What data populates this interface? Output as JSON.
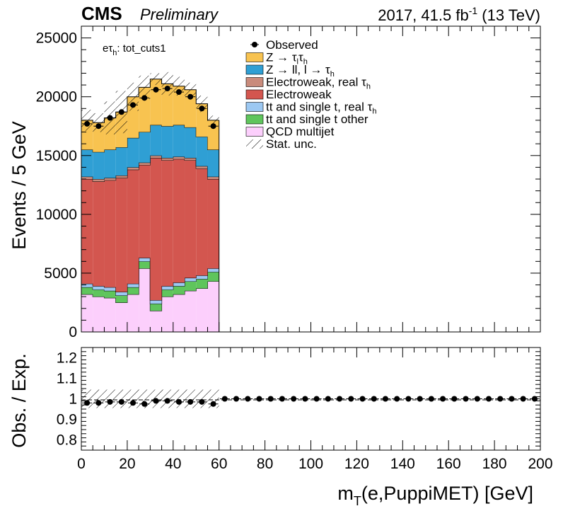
{
  "header": {
    "cms": "CMS",
    "preliminary": "Preliminary",
    "lumi_main": "2017, 41.5 fb",
    "lumi_sup": "-1",
    "lumi_energy": " (13 TeV)"
  },
  "channel_label": {
    "main": "eτ",
    "sub": "h",
    "rest": ": tot_cuts1"
  },
  "legend": [
    {
      "key": "observed",
      "label": "Observed",
      "style": "marker"
    },
    {
      "key": "ztt",
      "label": "Z → τ",
      "sub": "l",
      "label2": "τ",
      "sub2": "h",
      "style": "fill",
      "color": "#f8c350"
    },
    {
      "key": "zll",
      "label": "Z → ll, l → τ",
      "sub": "h",
      "style": "fill",
      "color": "#2f9fd4"
    },
    {
      "key": "ewk_real",
      "label": "Electroweak, real  τ",
      "sub": "h",
      "style": "fill",
      "color": "#c98b7c"
    },
    {
      "key": "ewk",
      "label": "Electroweak",
      "style": "fill",
      "color": "#d3564f"
    },
    {
      "key": "tt_real",
      "label": "tt and single t, real  τ",
      "sub": "h",
      "style": "fill",
      "color": "#9cc8f2"
    },
    {
      "key": "tt_other",
      "label": "tt and single t other",
      "style": "fill",
      "color": "#5fc55c"
    },
    {
      "key": "qcd",
      "label": "QCD multijet",
      "style": "fill",
      "color": "#fccffc"
    },
    {
      "key": "unc",
      "label": "Stat. unc.",
      "style": "hatch"
    }
  ],
  "axes": {
    "ylabel_main": "Events / 5 GeV",
    "ylabel_ratio": "Obs. / Exp.",
    "xlabel_main": "m",
    "xlabel_sub": "T",
    "xlabel_rest": "(e,PuppiMET) [GeV]"
  },
  "chart_data": {
    "type": "bar",
    "stacked": true,
    "bin_width": 5,
    "x_bin_edges": [
      0,
      5,
      10,
      15,
      20,
      25,
      30,
      35,
      40,
      45,
      50,
      55,
      60
    ],
    "xlim": [
      0,
      200
    ],
    "ylim": [
      0,
      26000
    ],
    "yticks_labeled": [
      0,
      5000,
      10000,
      15000,
      20000,
      25000
    ],
    "xticks_labeled": [
      0,
      20,
      40,
      60,
      80,
      100,
      120,
      140,
      160,
      180,
      200
    ],
    "series": [
      {
        "name": "QCD multijet",
        "key": "qcd",
        "values": [
          3200,
          3000,
          2900,
          2500,
          3200,
          5400,
          1800,
          3000,
          3200,
          3500,
          3700,
          4300
        ]
      },
      {
        "name": "tt and single t other",
        "key": "tt_other",
        "values": [
          600,
          600,
          600,
          600,
          600,
          600,
          600,
          600,
          700,
          800,
          800,
          800
        ]
      },
      {
        "name": "tt and single t, real  τh",
        "key": "tt_real",
        "values": [
          300,
          300,
          300,
          300,
          300,
          300,
          300,
          300,
          300,
          300,
          300,
          300
        ]
      },
      {
        "name": "Electroweak",
        "key": "ewk",
        "values": [
          8900,
          8900,
          9100,
          9700,
          9700,
          7900,
          12100,
          10700,
          10500,
          10000,
          9100,
          7600
        ]
      },
      {
        "name": "Electroweak, real  τh",
        "key": "ewk_real",
        "values": [
          200,
          200,
          200,
          200,
          200,
          200,
          200,
          200,
          200,
          200,
          200,
          200
        ]
      },
      {
        "name": "Z → ll, l → τh",
        "key": "zll",
        "values": [
          2300,
          2300,
          2400,
          2400,
          2500,
          2600,
          2600,
          2700,
          2700,
          2600,
          2500,
          2300
        ]
      },
      {
        "name": "Z → τlτh",
        "key": "ztt",
        "values": [
          2500,
          2500,
          2700,
          3000,
          3500,
          3800,
          3900,
          3600,
          3300,
          3200,
          2800,
          2500
        ]
      }
    ],
    "observed": {
      "x": [
        2.5,
        7.5,
        12.5,
        17.5,
        22.5,
        27.5,
        32.5,
        37.5,
        42.5,
        47.5,
        52.5,
        57.5
      ],
      "y": [
        17700,
        17500,
        18200,
        18700,
        19300,
        19900,
        20600,
        20700,
        20400,
        20000,
        19000,
        17500
      ]
    },
    "stat_unc_total": [
      18900,
      18600,
      19600,
      20500,
      21200,
      21800,
      22000,
      22100,
      21700,
      21200,
      20100,
      18400
    ],
    "ratio": {
      "ylim": [
        0.75,
        1.25
      ],
      "yticks_labeled": [
        0.8,
        0.9,
        1,
        1.1,
        1.2
      ],
      "x": [
        2.5,
        7.5,
        12.5,
        17.5,
        22.5,
        27.5,
        32.5,
        37.5,
        42.5,
        47.5,
        52.5,
        57.5,
        62.5,
        67.5,
        72.5,
        77.5,
        82.5,
        87.5,
        92.5,
        97.5,
        102.5,
        107.5,
        112.5,
        117.5,
        122.5,
        127.5,
        132.5,
        137.5,
        142.5,
        147.5,
        152.5,
        157.5,
        162.5,
        167.5,
        172.5,
        177.5,
        182.5,
        187.5,
        192.5,
        197.5
      ],
      "y": [
        0.98,
        0.98,
        0.985,
        0.985,
        0.98,
        0.975,
        0.99,
        0.99,
        0.985,
        0.985,
        0.985,
        0.975,
        1,
        1,
        1,
        1,
        1,
        1,
        1,
        1,
        1,
        1,
        1,
        1,
        1,
        1,
        1,
        1,
        1,
        1,
        1,
        1,
        1,
        1,
        1,
        1,
        1,
        1,
        1,
        1
      ],
      "unc_band": [
        0.955,
        1.045
      ]
    }
  }
}
